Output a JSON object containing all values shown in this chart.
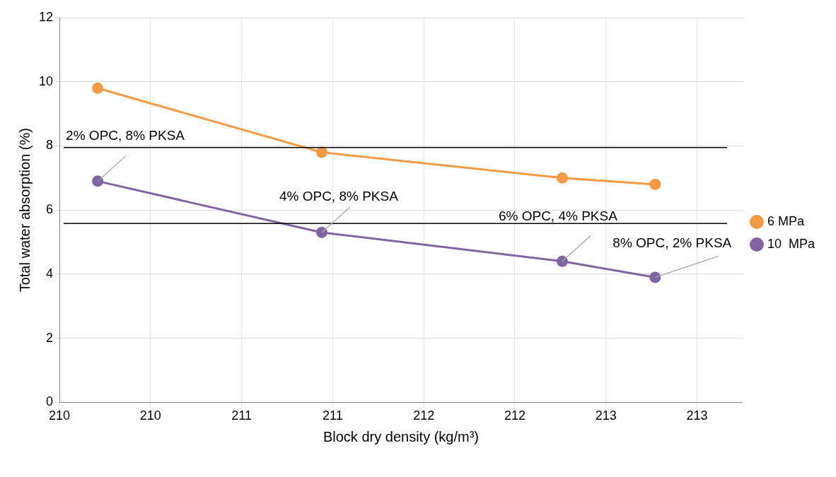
{
  "chart_data": {
    "type": "line",
    "xlabel": "Block dry density (kg/m³)",
    "ylabel": "Total water absorption (%)",
    "x": [
      209.96,
      211.19,
      212.51,
      213.02
    ],
    "series": [
      {
        "name": "6 MPa",
        "color": "#f59a44",
        "values": [
          9.8,
          7.8,
          7.0,
          6.8
        ]
      },
      {
        "name": "10  MPa",
        "color": "#8064a2",
        "values": [
          6.9,
          5.3,
          4.4,
          3.9
        ]
      }
    ],
    "xlim": [
      209.75,
      213.5
    ],
    "xticks": [
      {
        "value": 209.75,
        "label": "210"
      },
      {
        "value": 210.25,
        "label": "210"
      },
      {
        "value": 210.75,
        "label": "211"
      },
      {
        "value": 211.25,
        "label": "211"
      },
      {
        "value": 211.75,
        "label": "212"
      },
      {
        "value": 212.25,
        "label": "212"
      },
      {
        "value": 212.75,
        "label": "213"
      },
      {
        "value": 213.25,
        "label": "213"
      }
    ],
    "ylim": [
      0,
      12
    ],
    "yticks": [
      0,
      2,
      4,
      6,
      8,
      10,
      12
    ],
    "ref_lines": [
      {
        "axis": "y",
        "value": 7.95,
        "color": "#000000"
      },
      {
        "axis": "y",
        "value": 5.58,
        "color": "#000000"
      }
    ],
    "annotations": [
      {
        "text": "2% OPC, 8% PKSA",
        "x": 209.96,
        "y": 6.9
      },
      {
        "text": "4% OPC, 8% PKSA",
        "x": 211.19,
        "y": 5.3
      },
      {
        "text": "6% OPC, 4% PKSA",
        "x": 212.51,
        "y": 4.4
      },
      {
        "text": "8% OPC, 2% PKSA",
        "x": 213.02,
        "y": 3.9
      }
    ],
    "grid": true,
    "legend": "right",
    "marker": "circle",
    "line_style": "solid"
  }
}
